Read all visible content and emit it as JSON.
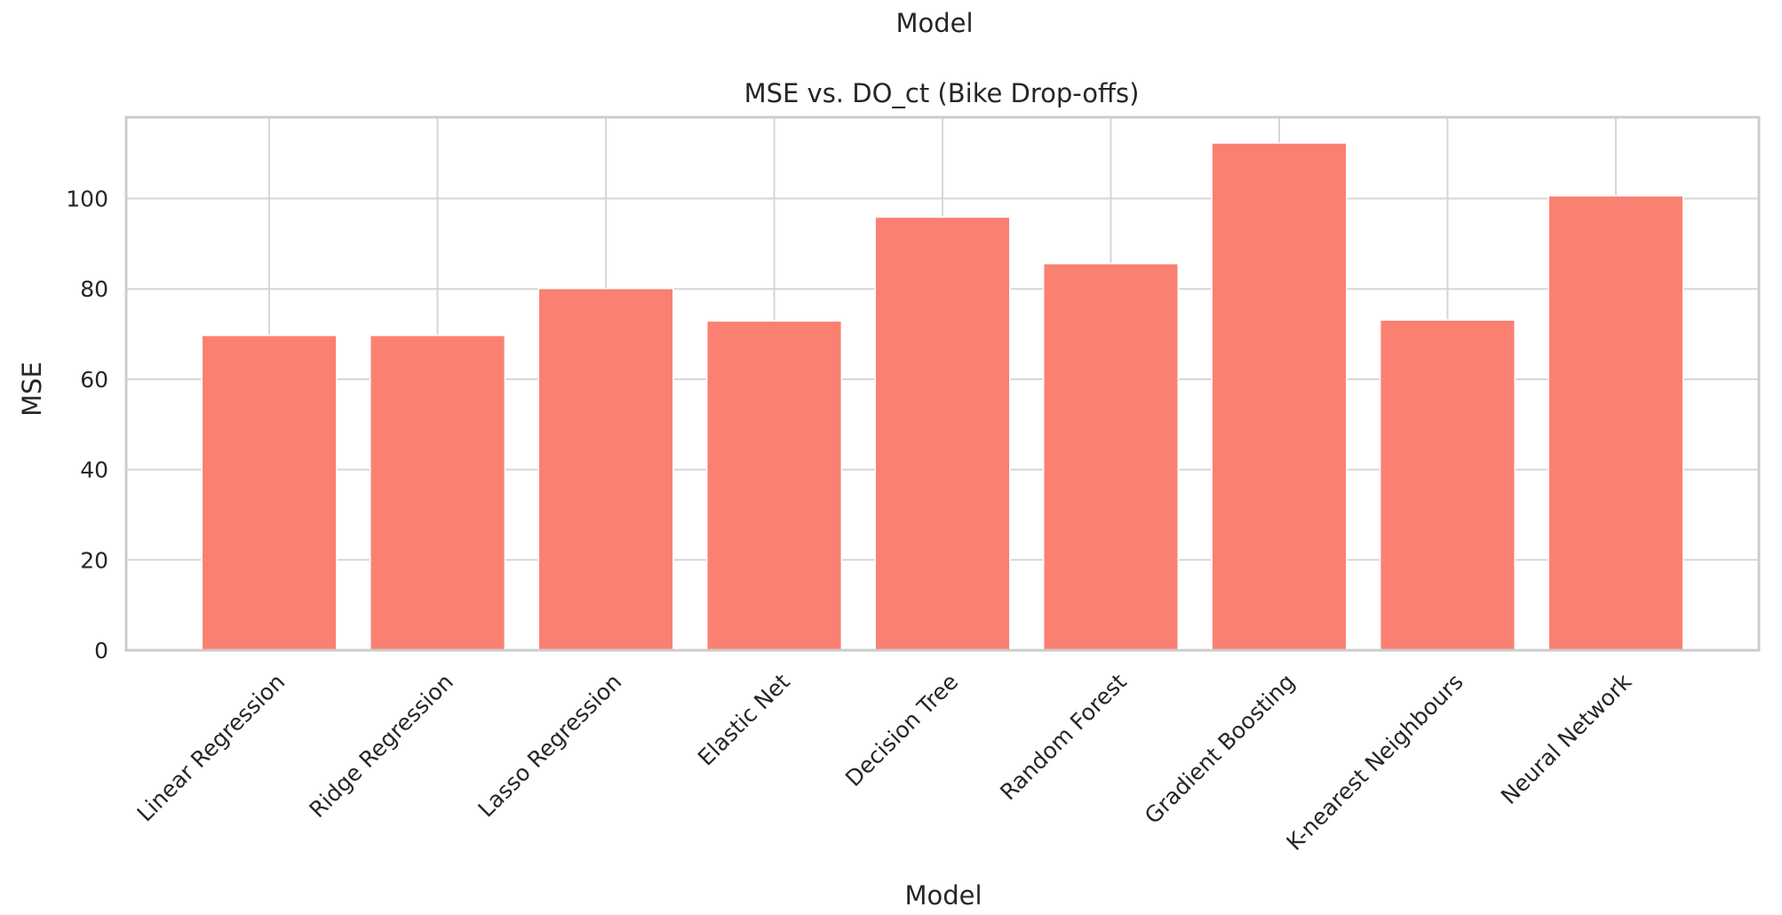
{
  "figure": {
    "suptitle": "Model"
  },
  "colors": {
    "bar": "#FA8072",
    "grid": "#d6d6d6",
    "frame": "#cccccc",
    "text": "#262626",
    "background": "#ffffff"
  },
  "chart_data": {
    "type": "bar",
    "title": "MSE vs. DO_ct (Bike Drop-offs)",
    "xlabel": "Model",
    "ylabel": "MSE",
    "categories": [
      "Linear Regression",
      "Ridge Regression",
      "Lasso Regression",
      "Elastic Net",
      "Decision Tree",
      "Random Forest",
      "Gradient Boosting",
      "K-nearest Neighbours",
      "Neural Network"
    ],
    "values": [
      69.7,
      69.7,
      80.1,
      72.9,
      95.9,
      85.6,
      112.3,
      73.1,
      100.6
    ],
    "ylim": [
      0,
      118
    ],
    "yticks": [
      0,
      20,
      40,
      60,
      80,
      100
    ],
    "grid": true,
    "xtick_rotation": -45
  }
}
